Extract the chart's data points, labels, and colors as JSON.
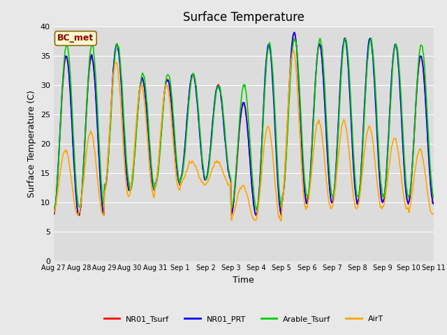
{
  "title": "Surface Temperature",
  "xlabel": "Time",
  "ylabel": "Surface Temperature (C)",
  "annotation": "BC_met",
  "annotation_color": "#8B0000",
  "annotation_bg": "#FFFACD",
  "annotation_border": "#8B6914",
  "ylim": [
    0,
    40
  ],
  "yticks": [
    0,
    5,
    10,
    15,
    20,
    25,
    30,
    35,
    40
  ],
  "xtick_labels": [
    "Aug 27",
    "Aug 28",
    "Aug 29",
    "Aug 30",
    "Aug 31",
    "Sep 1",
    "Sep 2",
    "Sep 3",
    "Sep 4",
    "Sep 5",
    "Sep 6",
    "Sep 7",
    "Sep 8",
    "Sep 9",
    "Sep 10",
    "Sep 11"
  ],
  "series_colors": [
    "#FF0000",
    "#0000FF",
    "#00CC00",
    "#FFA500"
  ],
  "series_labels": [
    "NR01_Tsurf",
    "NR01_PRT",
    "Arable_Tsurf",
    "AirT"
  ],
  "fig_bg_color": "#E8E8E8",
  "plot_bg_color": "#DCDCDC",
  "grid_color": "#FFFFFF",
  "title_fontsize": 12,
  "axis_fontsize": 9,
  "tick_fontsize": 8,
  "lw": 1.2
}
